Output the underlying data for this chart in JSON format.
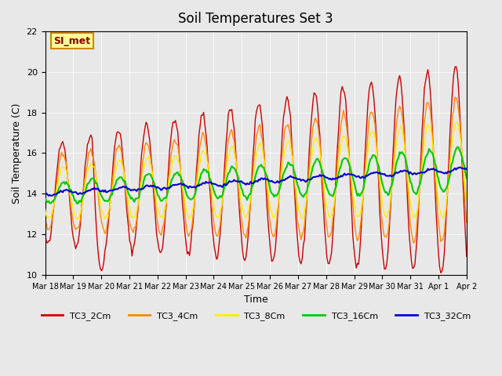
{
  "title": "Soil Temperatures Set 3",
  "xlabel": "Time",
  "ylabel": "Soil Temperature (C)",
  "ylim": [
    10,
    22
  ],
  "yticks": [
    10,
    12,
    14,
    16,
    18,
    20,
    22
  ],
  "plot_bg_color": "#e8e8e8",
  "series_colors": {
    "TC3_2Cm": "#cc0000",
    "TC3_4Cm": "#ff8800",
    "TC3_8Cm": "#ffee00",
    "TC3_16Cm": "#00cc00",
    "TC3_32Cm": "#0000cc"
  },
  "annotation_text": "SI_met",
  "annotation_box_color": "#ffff99",
  "annotation_border_color": "#cc8800",
  "x_labels": [
    "Mar 18",
    "Mar 19",
    "Mar 20",
    "Mar 21",
    "Mar 22",
    "Mar 23",
    "Mar 24",
    "Mar 25",
    "Mar 26",
    "Mar 27",
    "Mar 28",
    "Mar 29",
    "Mar 30",
    "Mar 31",
    "Apr 1",
    "Apr 2"
  ],
  "legend_entries": [
    "TC3_2Cm",
    "TC3_4Cm",
    "TC3_8Cm",
    "TC3_16Cm",
    "TC3_32Cm"
  ]
}
